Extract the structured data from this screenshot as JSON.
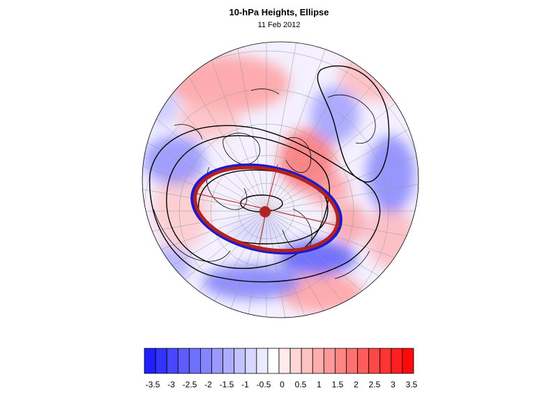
{
  "title": "10-hPa Heights, Ellipse",
  "subtitle": "11 Feb 2012",
  "colorbar": {
    "levels": [
      "-3.5",
      "-3",
      "-2.5",
      "-2",
      "-1.5",
      "-1",
      "-0.5",
      "0",
      "0.5",
      "1",
      "1.5",
      "2",
      "2.5",
      "3",
      "3.5"
    ],
    "colors": [
      "#1f1fff",
      "#3333ff",
      "#4747ff",
      "#5c5cff",
      "#7070ff",
      "#8585ff",
      "#9999ff",
      "#adadff",
      "#c2c2ff",
      "#d6d6ff",
      "#ebebff",
      "#ffffff",
      "#ffebeb",
      "#ffd6d6",
      "#ffc2c2",
      "#ffadad",
      "#ff9999",
      "#ff8585",
      "#ff7070",
      "#ff5c5c",
      "#ff4747",
      "#ff3333",
      "#ff1f1f",
      "#ff0a0a"
    ]
  },
  "colors": {
    "ellipse_fit": "#b22222",
    "ellipse_obs": "#1a1acc",
    "center_marker": "#b22222",
    "contour": "#000000"
  }
}
